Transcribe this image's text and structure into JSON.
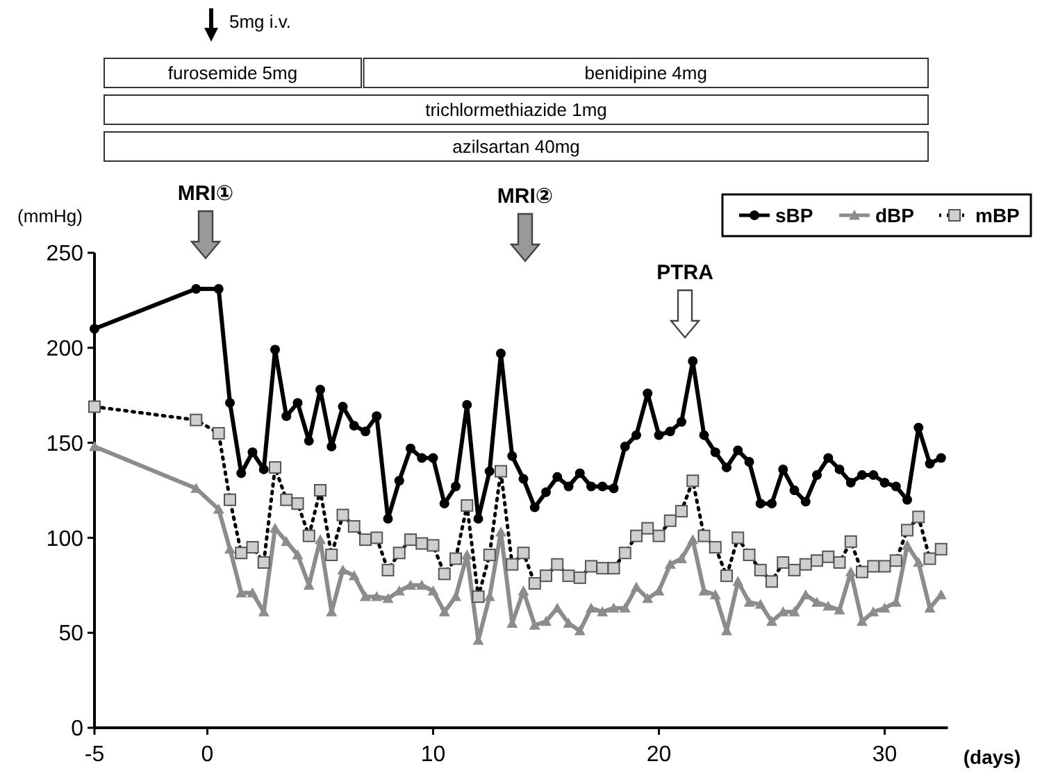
{
  "chart_data": {
    "type": "line",
    "xlabel": "(days)",
    "ylabel": "(mmHg)",
    "x": [
      -5,
      -0.5,
      0.5,
      1,
      1.5,
      2,
      2.5,
      3,
      3.5,
      4,
      4.5,
      5,
      5.5,
      6,
      6.5,
      7,
      7.5,
      8,
      8.5,
      9,
      9.5,
      10,
      10.5,
      11,
      11.5,
      12,
      12.5,
      13,
      13.5,
      14,
      14.5,
      15,
      15.5,
      16,
      16.5,
      17,
      17.5,
      18,
      18.5,
      19,
      19.5,
      20,
      20.5,
      21,
      21.5,
      22,
      22.5,
      23,
      23.5,
      24,
      24.5,
      25,
      25.5,
      26,
      26.5,
      27,
      27.5,
      28,
      28.5,
      29,
      29.5,
      30,
      30.5,
      31,
      31.5,
      32,
      32.5
    ],
    "series": [
      {
        "name": "sBP",
        "color": "#000000",
        "marker": "circle",
        "line_style": "solid",
        "values": [
          210,
          231,
          231,
          171,
          134,
          145,
          136,
          199,
          164,
          171,
          151,
          178,
          148,
          169,
          159,
          156,
          164,
          110,
          130,
          147,
          142,
          142,
          118,
          127,
          170,
          110,
          135,
          197,
          143,
          131,
          116,
          124,
          132,
          127,
          134,
          127,
          127,
          126,
          148,
          154,
          176,
          154,
          156,
          161,
          193,
          154,
          145,
          137,
          146,
          140,
          118,
          118,
          136,
          125,
          119,
          133,
          142,
          136,
          129,
          133,
          133,
          129,
          127,
          120,
          158,
          139,
          142
        ]
      },
      {
        "name": "dBP",
        "color": "#8c8c8c",
        "marker": "triangle",
        "line_style": "solid",
        "values": [
          148,
          126,
          115,
          94,
          71,
          71,
          61,
          105,
          98,
          91,
          75,
          99,
          61,
          83,
          80,
          69,
          69,
          68,
          72,
          75,
          75,
          72,
          61,
          69,
          91,
          46,
          69,
          103,
          55,
          72,
          54,
          56,
          63,
          55,
          51,
          63,
          61,
          63,
          63,
          74,
          68,
          72,
          86,
          89,
          99,
          72,
          70,
          51,
          77,
          66,
          65,
          56,
          61,
          61,
          70,
          66,
          64,
          62,
          82,
          56,
          61,
          63,
          66,
          96,
          87,
          63,
          70
        ]
      },
      {
        "name": "mBP",
        "color": "#000000",
        "marker": "square",
        "line_style": "dotted",
        "values": [
          169,
          162,
          155,
          120,
          92,
          95,
          87,
          137,
          120,
          118,
          101,
          125,
          91,
          112,
          106,
          99,
          100,
          83,
          92,
          99,
          97,
          96,
          81,
          89,
          117,
          69,
          91,
          135,
          86,
          92,
          76,
          80,
          86,
          80,
          79,
          85,
          84,
          84,
          92,
          101,
          105,
          101,
          109,
          114,
          130,
          101,
          95,
          80,
          100,
          91,
          83,
          77,
          87,
          83,
          86,
          88,
          90,
          87,
          98,
          82,
          85,
          85,
          88,
          104,
          111,
          89,
          94
        ]
      }
    ],
    "xlim": [
      -5,
      32.8
    ],
    "xticks": [
      -5,
      0,
      10,
      20,
      30
    ],
    "ylim": [
      0,
      250
    ],
    "yticks": [
      0,
      50,
      100,
      150,
      200,
      250
    ],
    "grid": false,
    "legend": "top right",
    "annotations": [
      "5mg i.v.",
      "furosemide 5mg",
      "benidipine 4mg",
      "trichlormethiazide 1mg",
      "azilsartan 40mg",
      "MRI①",
      "MRI②",
      "PTRA"
    ]
  }
}
